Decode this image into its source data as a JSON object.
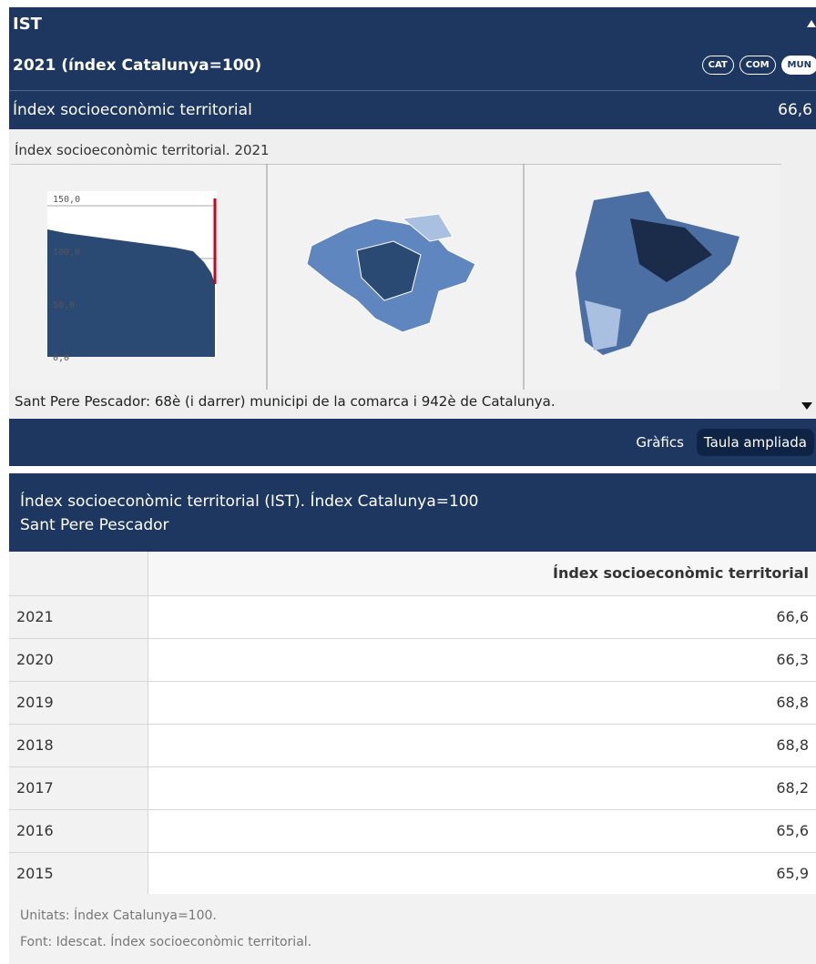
{
  "header": {
    "title": "IST",
    "subtitle": "2021 (índex Catalunya=100)",
    "buttons": [
      "CAT",
      "COM",
      "MUN"
    ],
    "indicator": "Índex socioeconòmic territorial",
    "indicator_value": "66,6"
  },
  "panel": {
    "caption": "Índex socioeconòmic territorial. 2021",
    "thumb_ticks": [
      "150,0",
      "100,0",
      "50,0",
      "0,0"
    ],
    "summary": "Sant Pere Pescador: 68è (i darrer) municipi de la comarca i 942è de Catalunya."
  },
  "tabs": [
    "Gràfics",
    "Taula ampliada"
  ],
  "table": {
    "title": "Índex socioeconòmic territorial (IST). Índex Catalunya=100",
    "subtitle": "Sant Pere Pescador",
    "column": "Índex socioeconòmic territorial",
    "rows": [
      [
        "2021",
        "66,6"
      ],
      [
        "2020",
        "66,3"
      ],
      [
        "2019",
        "68,8"
      ],
      [
        "2018",
        "68,8"
      ],
      [
        "2017",
        "68,2"
      ],
      [
        "2016",
        "65,6"
      ],
      [
        "2015",
        "65,9"
      ]
    ]
  },
  "notes": [
    "Unitats: Índex Catalunya=100.",
    "Font: Idescat. Índex socioeconòmic territorial."
  ]
}
